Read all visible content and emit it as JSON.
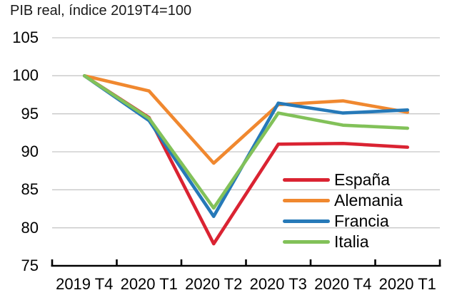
{
  "title": "PIB real, índice 2019T4=100",
  "chart_data": {
    "type": "line",
    "title": "PIB real, índice 2019T4=100",
    "categories": [
      "2019 T4",
      "2020 T1",
      "2020 T2",
      "2020 T3",
      "2020 T4",
      "2020 T1"
    ],
    "series": [
      {
        "name": "España",
        "color": "#da2332",
        "values": [
          100,
          94.5,
          77.9,
          91.0,
          91.1,
          90.6
        ]
      },
      {
        "name": "Alemania",
        "color": "#f0882f",
        "values": [
          100,
          98.0,
          88.5,
          96.2,
          96.7,
          95.2
        ]
      },
      {
        "name": "Francia",
        "color": "#2679b8",
        "values": [
          100,
          94.1,
          81.5,
          96.4,
          95.1,
          95.5
        ]
      },
      {
        "name": "Italia",
        "color": "#82c159",
        "values": [
          100,
          94.4,
          82.6,
          95.1,
          93.5,
          93.1
        ]
      }
    ],
    "xlabel": "",
    "ylabel": "",
    "ylim": [
      75,
      105
    ],
    "y_ticks": [
      105,
      100,
      95,
      90,
      85,
      80,
      75
    ],
    "grid": true,
    "legend_position": "inside-right",
    "gridline_color": "#c7c7c7",
    "axis_color": "#000000"
  }
}
